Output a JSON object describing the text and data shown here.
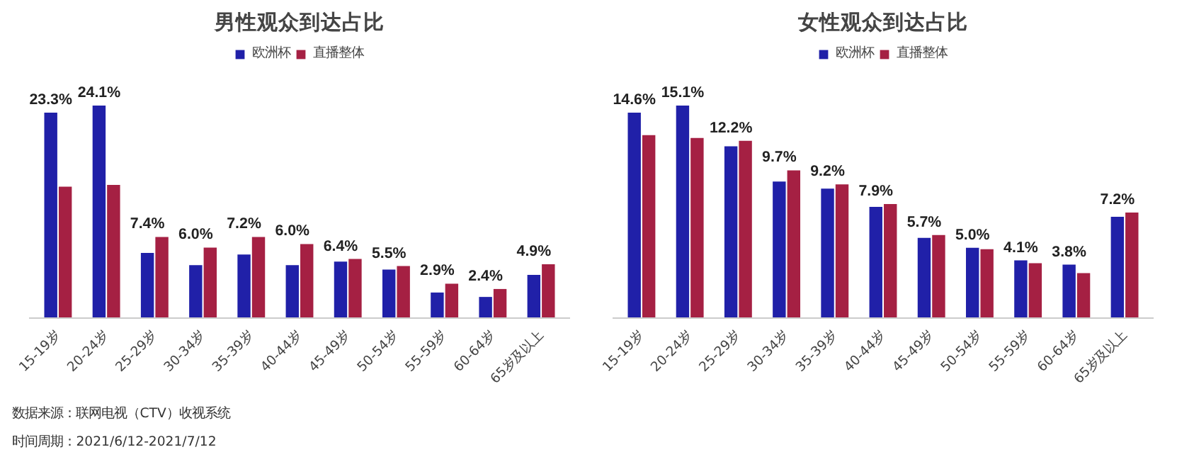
{
  "chart_data": [
    {
      "type": "bar",
      "title": "男性观众到达占比",
      "legend": "top",
      "grid": false,
      "categories": [
        "15-19岁",
        "20-24岁",
        "25-29岁",
        "30-34岁",
        "35-39岁",
        "40-44岁",
        "45-49岁",
        "50-54岁",
        "55-59岁",
        "60-64岁",
        "65岁及以上"
      ],
      "series": [
        {
          "name": "欧洲杯",
          "color": "#2020a8",
          "values": [
            23.3,
            24.1,
            7.4,
            6.0,
            7.2,
            6.0,
            6.4,
            5.5,
            2.9,
            2.4,
            4.9
          ],
          "value_labels": [
            "23.3%",
            "24.1%",
            "7.4%",
            "6.0%",
            "7.2%",
            "6.0%",
            "6.4%",
            "5.5%",
            "2.9%",
            "2.4%",
            "4.9%"
          ]
        },
        {
          "name": "直播整体",
          "color": "#a52043",
          "values": [
            14.9,
            15.1,
            9.2,
            8.0,
            9.2,
            8.4,
            6.7,
            5.9,
            3.9,
            3.3,
            6.1
          ]
        }
      ],
      "annotations": [
        "数据来源：联网电视（CTV）收视系统",
        "时间周期：2021/6/12-2021/7/12"
      ]
    },
    {
      "type": "bar",
      "title": "女性观众到达占比",
      "legend": "top",
      "grid": false,
      "categories": [
        "15-19岁",
        "20-24岁",
        "25-29岁",
        "30-34岁",
        "35-39岁",
        "40-44岁",
        "45-49岁",
        "50-54岁",
        "55-59岁",
        "60-64岁",
        "65岁及以上"
      ],
      "series": [
        {
          "name": "欧洲杯",
          "color": "#2020a8",
          "values": [
            14.6,
            15.1,
            12.2,
            9.7,
            9.2,
            7.9,
            5.7,
            5.0,
            4.1,
            3.8,
            7.2
          ],
          "value_labels": [
            "14.6%",
            "15.1%",
            "12.2%",
            "9.7%",
            "9.2%",
            "7.9%",
            "5.7%",
            "5.0%",
            "4.1%",
            "3.8%",
            "7.2%"
          ]
        },
        {
          "name": "直播整体",
          "color": "#a52043",
          "values": [
            13.0,
            12.8,
            12.6,
            10.5,
            9.5,
            8.1,
            5.9,
            4.9,
            3.9,
            3.2,
            7.5
          ]
        }
      ]
    }
  ]
}
